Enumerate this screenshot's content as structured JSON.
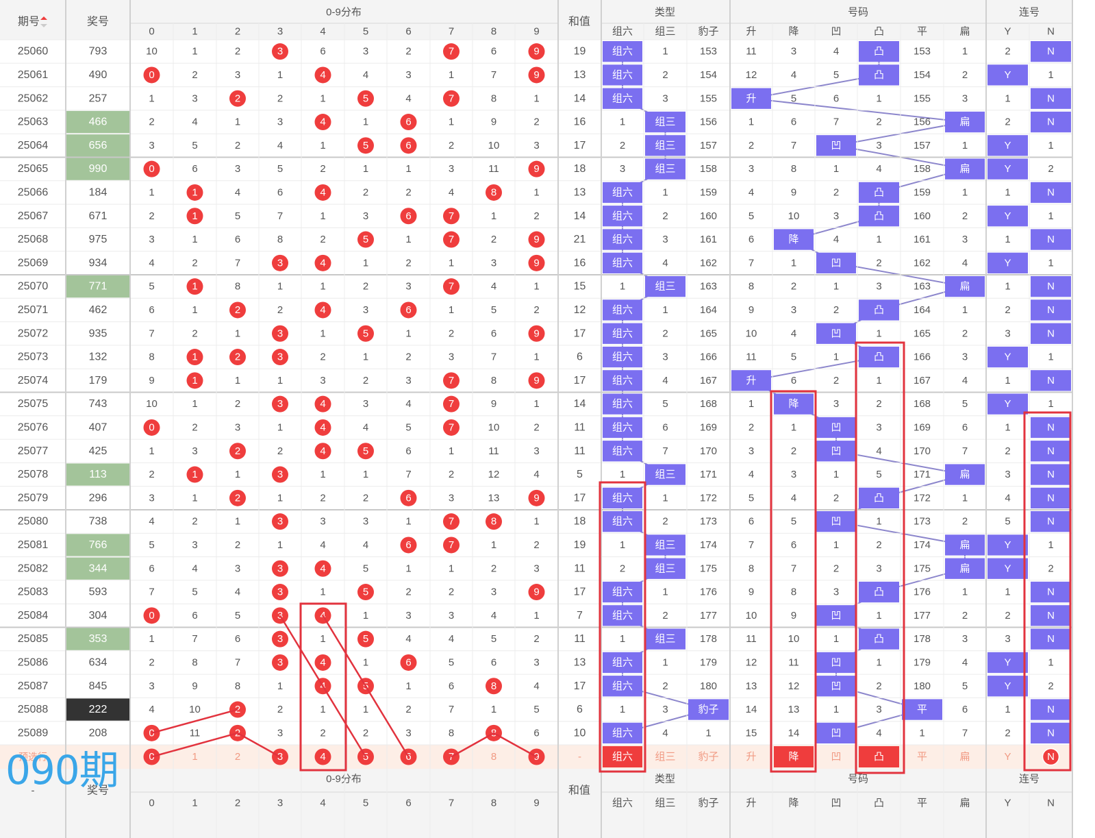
{
  "header": {
    "period_label": "期号",
    "prize_label": "奖号",
    "dist_label": "0-9分布",
    "sum_label": "和值",
    "type_label": "类型",
    "code_label": "号码",
    "consec_label": "连号",
    "digits": [
      "0",
      "1",
      "2",
      "3",
      "4",
      "5",
      "6",
      "7",
      "8",
      "9"
    ],
    "type_cols": [
      "组六",
      "组三",
      "豹子"
    ],
    "code_cols": [
      "升",
      "降",
      "凹",
      "凸",
      "平",
      "扁"
    ],
    "consec_cols": [
      "Y",
      "N"
    ]
  },
  "rows": [
    {
      "p": "25060",
      "n": "793",
      "d": [
        10,
        1,
        2,
        "h",
        6,
        3,
        2,
        "h",
        6,
        "h"
      ],
      "s": "19",
      "t": [
        "组六",
        1,
        153
      ],
      "c": [
        11,
        3,
        4,
        "凸",
        153,
        1
      ],
      "l": [
        2,
        "N"
      ]
    },
    {
      "p": "25061",
      "n": "490",
      "d": [
        "h",
        2,
        3,
        1,
        "h",
        4,
        3,
        1,
        7,
        "h"
      ],
      "s": "13",
      "t": [
        "组六",
        2,
        154
      ],
      "c": [
        12,
        4,
        5,
        "凸",
        154,
        2
      ],
      "l": [
        "Y",
        1
      ]
    },
    {
      "p": "25062",
      "n": "257",
      "d": [
        1,
        3,
        "h",
        2,
        1,
        "h",
        4,
        "h",
        8,
        1
      ],
      "s": "14",
      "t": [
        "组六",
        3,
        155
      ],
      "c": [
        "升",
        5,
        6,
        1,
        155,
        3
      ],
      "l": [
        1,
        "N"
      ]
    },
    {
      "p": "25063",
      "n": "466",
      "d": [
        2,
        4,
        1,
        3,
        "h",
        1,
        "h",
        1,
        9,
        2
      ],
      "s": "16",
      "t": [
        1,
        "组三",
        156
      ],
      "c": [
        1,
        6,
        7,
        2,
        156,
        "扁"
      ],
      "l": [
        2,
        "N"
      ]
    },
    {
      "p": "25064",
      "n": "656",
      "d": [
        3,
        5,
        2,
        4,
        1,
        "h",
        "h",
        2,
        10,
        3
      ],
      "s": "17",
      "t": [
        2,
        "组三",
        157
      ],
      "c": [
        2,
        7,
        "凹",
        3,
        157,
        1
      ],
      "l": [
        "Y",
        1
      ]
    },
    {
      "p": "25065",
      "n": "990",
      "d": [
        "h",
        6,
        3,
        5,
        2,
        1,
        1,
        3,
        11,
        "h"
      ],
      "s": "18",
      "t": [
        3,
        "组三",
        158
      ],
      "c": [
        3,
        8,
        1,
        4,
        158,
        "扁"
      ],
      "l": [
        "Y",
        2
      ]
    },
    {
      "p": "25066",
      "n": "184",
      "d": [
        1,
        "h",
        4,
        6,
        "h",
        2,
        2,
        4,
        "h",
        1
      ],
      "s": "13",
      "t": [
        "组六",
        1,
        159
      ],
      "c": [
        4,
        9,
        2,
        "凸",
        159,
        1
      ],
      "l": [
        1,
        "N"
      ]
    },
    {
      "p": "25067",
      "n": "671",
      "d": [
        2,
        "h",
        5,
        7,
        1,
        3,
        "h",
        "h",
        1,
        2
      ],
      "s": "14",
      "t": [
        "组六",
        2,
        160
      ],
      "c": [
        5,
        10,
        3,
        "凸",
        160,
        2
      ],
      "l": [
        "Y",
        1
      ]
    },
    {
      "p": "25068",
      "n": "975",
      "d": [
        3,
        1,
        6,
        8,
        2,
        "h",
        1,
        "h",
        2,
        "h"
      ],
      "s": "21",
      "t": [
        "组六",
        3,
        161
      ],
      "c": [
        6,
        "降",
        4,
        1,
        161,
        3
      ],
      "l": [
        1,
        "N"
      ]
    },
    {
      "p": "25069",
      "n": "934",
      "d": [
        4,
        2,
        7,
        "h",
        "h",
        1,
        2,
        1,
        3,
        "h"
      ],
      "s": "16",
      "t": [
        "组六",
        4,
        162
      ],
      "c": [
        7,
        1,
        "凹",
        2,
        162,
        4
      ],
      "l": [
        "Y",
        1
      ]
    },
    {
      "p": "25070",
      "n": "771",
      "d": [
        5,
        "h",
        8,
        1,
        1,
        2,
        3,
        "h",
        4,
        1
      ],
      "s": "15",
      "t": [
        1,
        "组三",
        163
      ],
      "c": [
        8,
        2,
        1,
        3,
        163,
        "扁"
      ],
      "l": [
        1,
        "N"
      ]
    },
    {
      "p": "25071",
      "n": "462",
      "d": [
        6,
        1,
        "h",
        2,
        "h",
        3,
        "h",
        1,
        5,
        2
      ],
      "s": "12",
      "t": [
        "组六",
        1,
        164
      ],
      "c": [
        9,
        3,
        2,
        "凸",
        164,
        1
      ],
      "l": [
        2,
        "N"
      ]
    },
    {
      "p": "25072",
      "n": "935",
      "d": [
        7,
        2,
        1,
        "h",
        1,
        "h",
        1,
        2,
        6,
        "h"
      ],
      "s": "17",
      "t": [
        "组六",
        2,
        165
      ],
      "c": [
        10,
        4,
        "凹",
        1,
        165,
        2
      ],
      "l": [
        3,
        "N"
      ]
    },
    {
      "p": "25073",
      "n": "132",
      "d": [
        8,
        "h",
        "h",
        "h",
        2,
        1,
        2,
        3,
        7,
        1
      ],
      "s": "6",
      "t": [
        "组六",
        3,
        166
      ],
      "c": [
        11,
        5,
        1,
        "凸",
        166,
        3
      ],
      "l": [
        "Y",
        1
      ]
    },
    {
      "p": "25074",
      "n": "179",
      "d": [
        9,
        "h",
        1,
        1,
        3,
        2,
        3,
        "h",
        8,
        "h"
      ],
      "s": "17",
      "t": [
        "组六",
        4,
        167
      ],
      "c": [
        "升",
        6,
        2,
        1,
        167,
        4
      ],
      "l": [
        1,
        "N"
      ]
    },
    {
      "p": "25075",
      "n": "743",
      "d": [
        10,
        1,
        2,
        "h",
        "h",
        3,
        4,
        "h",
        9,
        1
      ],
      "s": "14",
      "t": [
        "组六",
        5,
        168
      ],
      "c": [
        1,
        "降",
        3,
        2,
        168,
        5
      ],
      "l": [
        "Y",
        1
      ]
    },
    {
      "p": "25076",
      "n": "407",
      "d": [
        "h",
        2,
        3,
        1,
        "h",
        4,
        5,
        "h",
        10,
        2
      ],
      "s": "11",
      "t": [
        "组六",
        6,
        169
      ],
      "c": [
        2,
        1,
        "凹",
        3,
        169,
        6
      ],
      "l": [
        1,
        "N"
      ]
    },
    {
      "p": "25077",
      "n": "425",
      "d": [
        1,
        3,
        "h",
        2,
        "h",
        "h",
        6,
        1,
        11,
        3
      ],
      "s": "11",
      "t": [
        "组六",
        7,
        170
      ],
      "c": [
        3,
        2,
        "凹",
        4,
        170,
        7
      ],
      "l": [
        2,
        "N"
      ]
    },
    {
      "p": "25078",
      "n": "113",
      "d": [
        2,
        "h",
        1,
        "h",
        1,
        1,
        7,
        2,
        12,
        4
      ],
      "s": "5",
      "t": [
        1,
        "组三",
        171
      ],
      "c": [
        4,
        3,
        1,
        5,
        171,
        "扁"
      ],
      "l": [
        3,
        "N"
      ]
    },
    {
      "p": "25079",
      "n": "296",
      "d": [
        3,
        1,
        "h",
        1,
        2,
        2,
        "h",
        3,
        13,
        "h"
      ],
      "s": "17",
      "t": [
        "组六",
        1,
        172
      ],
      "c": [
        5,
        4,
        2,
        "凸",
        172,
        1
      ],
      "l": [
        4,
        "N"
      ]
    },
    {
      "p": "25080",
      "n": "738",
      "d": [
        4,
        2,
        1,
        "h",
        3,
        3,
        1,
        "h",
        "h",
        1
      ],
      "s": "18",
      "t": [
        "组六",
        2,
        173
      ],
      "c": [
        6,
        5,
        "凹",
        1,
        173,
        2
      ],
      "l": [
        5,
        "N"
      ]
    },
    {
      "p": "25081",
      "n": "766",
      "d": [
        5,
        3,
        2,
        1,
        4,
        4,
        "h",
        "h",
        1,
        2
      ],
      "s": "19",
      "t": [
        1,
        "组三",
        174
      ],
      "c": [
        7,
        6,
        1,
        2,
        174,
        "扁"
      ],
      "l": [
        "Y",
        1
      ]
    },
    {
      "p": "25082",
      "n": "344",
      "d": [
        6,
        4,
        3,
        "h",
        "h",
        5,
        1,
        1,
        2,
        3
      ],
      "s": "11",
      "t": [
        2,
        "组三",
        175
      ],
      "c": [
        8,
        7,
        2,
        3,
        175,
        "扁"
      ],
      "l": [
        "Y",
        2
      ]
    },
    {
      "p": "25083",
      "n": "593",
      "d": [
        7,
        5,
        4,
        "h",
        1,
        "h",
        2,
        2,
        3,
        "h"
      ],
      "s": "17",
      "t": [
        "组六",
        1,
        176
      ],
      "c": [
        9,
        8,
        3,
        "凸",
        176,
        1
      ],
      "l": [
        1,
        "N"
      ]
    },
    {
      "p": "25084",
      "n": "304",
      "d": [
        "h",
        6,
        5,
        "h",
        "h",
        1,
        3,
        3,
        4,
        1
      ],
      "s": "7",
      "t": [
        "组六",
        2,
        177
      ],
      "c": [
        10,
        9,
        "凹",
        1,
        177,
        2
      ],
      "l": [
        2,
        "N"
      ]
    },
    {
      "p": "25085",
      "n": "353",
      "d": [
        1,
        7,
        6,
        "h",
        1,
        "h",
        4,
        4,
        5,
        2
      ],
      "s": "11",
      "t": [
        1,
        "组三",
        178
      ],
      "c": [
        11,
        10,
        1,
        "凸",
        178,
        3
      ],
      "l": [
        3,
        "N"
      ]
    },
    {
      "p": "25086",
      "n": "634",
      "d": [
        2,
        8,
        7,
        "h",
        "h",
        1,
        "h",
        5,
        6,
        3
      ],
      "s": "13",
      "t": [
        "组六",
        1,
        179
      ],
      "c": [
        12,
        11,
        "凹",
        1,
        179,
        4
      ],
      "l": [
        "Y",
        1
      ]
    },
    {
      "p": "25087",
      "n": "845",
      "d": [
        3,
        9,
        8,
        1,
        "h",
        "h",
        1,
        6,
        "h",
        4
      ],
      "s": "17",
      "t": [
        "组六",
        2,
        180
      ],
      "c": [
        13,
        12,
        "凹",
        2,
        180,
        5
      ],
      "l": [
        "Y",
        2
      ]
    },
    {
      "p": "25088",
      "n": "222",
      "d": [
        4,
        10,
        "h",
        2,
        1,
        1,
        2,
        7,
        1,
        5
      ],
      "s": "6",
      "t": [
        1,
        3,
        "豹子"
      ],
      "c": [
        14,
        13,
        1,
        3,
        "平",
        6
      ],
      "l": [
        1,
        "N"
      ]
    },
    {
      "p": "25089",
      "n": "208",
      "d": [
        "h",
        11,
        "h",
        3,
        2,
        2,
        3,
        8,
        "h",
        6
      ],
      "s": "10",
      "t": [
        "组六",
        4,
        1
      ],
      "c": [
        15,
        14,
        "凹",
        4,
        1,
        7
      ],
      "l": [
        2,
        "N"
      ]
    }
  ],
  "predict": {
    "label": "预选行",
    "d": [
      "0",
      "1",
      "2",
      "3",
      "4",
      "5",
      "6",
      "7",
      "8",
      "9"
    ],
    "sel": [
      0,
      3,
      4,
      5,
      6,
      7,
      9
    ],
    "s": "-",
    "t": [
      "组六",
      "组三",
      "豹子"
    ],
    "tsel": [
      0
    ],
    "c": [
      "升",
      "降",
      "凹",
      "凸",
      "平",
      "扁"
    ],
    "csel": [
      1,
      3
    ],
    "l": [
      "Y",
      "N"
    ],
    "lsel": [
      1
    ]
  },
  "footer": {
    "period_cell": "-"
  },
  "overlay_text": "090期",
  "colors": {
    "red": "#ef3d3d",
    "blue": "#7b6ff0",
    "green": "#a3c49a",
    "dark": "#333333",
    "line_blue": "#8c86cc",
    "line_red": "#e2333e",
    "predict_bg": "#fdeee6",
    "predict_text": "#f19a83"
  }
}
